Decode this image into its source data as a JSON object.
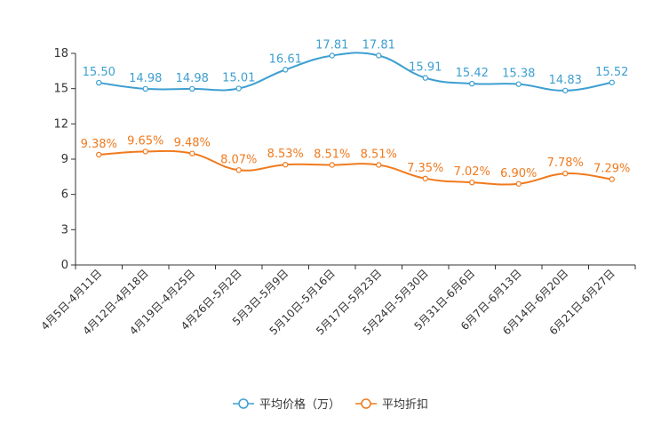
{
  "chart_data": {
    "type": "line",
    "title": "",
    "xlabel": "",
    "ylabel": "",
    "ylim": [
      0,
      18
    ],
    "yticks": [
      0,
      3,
      6,
      9,
      12,
      15,
      18
    ],
    "grid": false,
    "legend_position": "bottom-center",
    "categories": [
      "4月5日-4月11日",
      "4月12日-4月18日",
      "4月19日-4月25日",
      "4月26日-5月2日",
      "5月3日-5月9日",
      "5月10日-5月16日",
      "5月17日-5月23日",
      "5月24日-5月30日",
      "5月31日-6月6日",
      "6月7日-6月13日",
      "6月14日-6月20日",
      "6月21日-6月27日"
    ],
    "series": [
      {
        "name": "平均价格（万）",
        "color": "#3d9fd1",
        "values": [
          15.5,
          14.98,
          14.98,
          15.01,
          16.61,
          17.81,
          17.81,
          15.91,
          15.42,
          15.38,
          14.83,
          15.52
        ],
        "labels": [
          "15.50",
          "14.98",
          "14.98",
          "15.01",
          "16.61",
          "17.81",
          "17.81",
          "15.91",
          "15.42",
          "15.38",
          "14.83",
          "15.52"
        ]
      },
      {
        "name": "平均折扣",
        "color": "#f07a1e",
        "values": [
          9.38,
          9.65,
          9.48,
          8.07,
          8.53,
          8.51,
          8.51,
          7.35,
          7.02,
          6.9,
          7.78,
          7.29
        ],
        "labels": [
          "9.38%",
          "9.65%",
          "9.48%",
          "8.07%",
          "8.53%",
          "8.51%",
          "8.51%",
          "7.35%",
          "7.02%",
          "6.90%",
          "7.78%",
          "7.29%"
        ]
      }
    ]
  }
}
